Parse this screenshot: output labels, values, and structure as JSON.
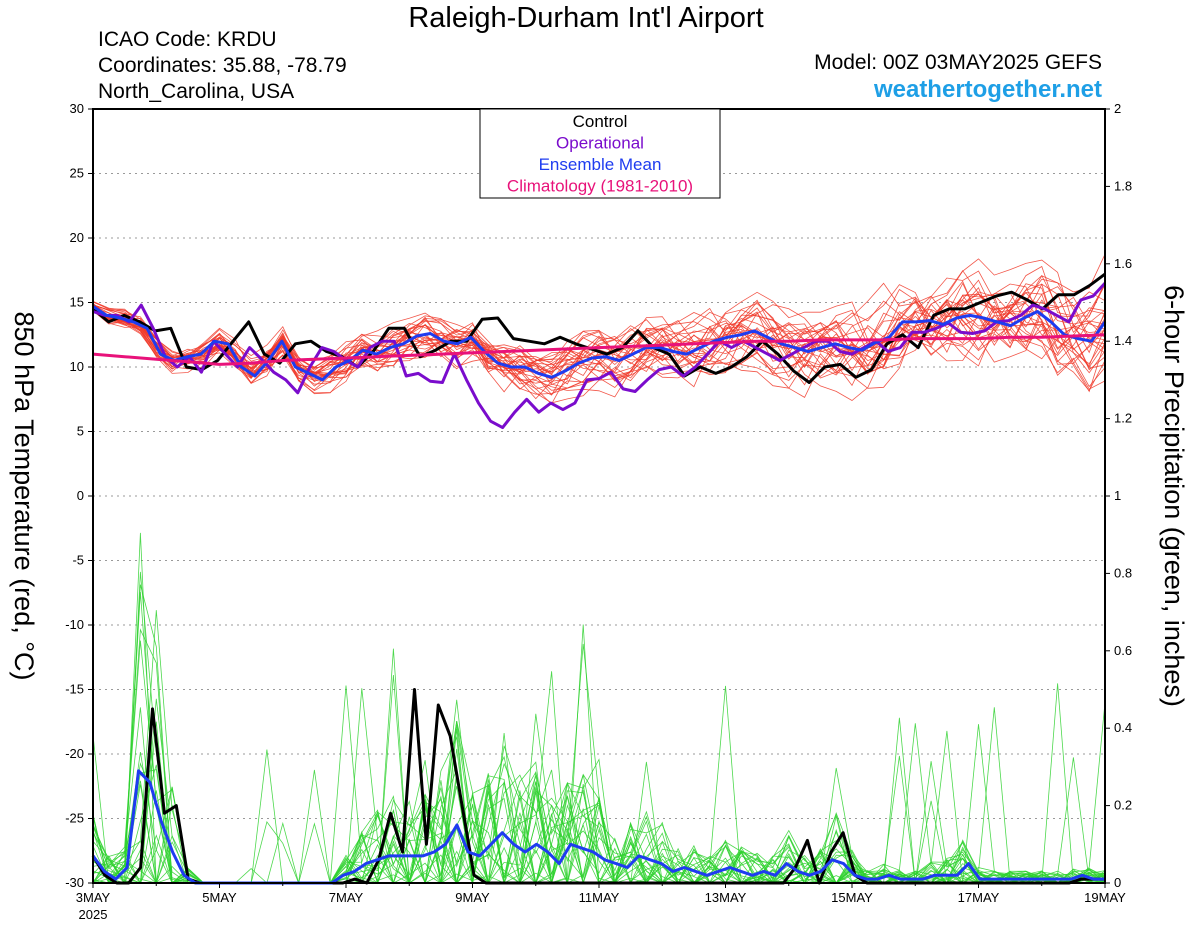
{
  "header": {
    "title": "Raleigh-Durham Int'l Airport",
    "icao": "ICAO Code: KRDU",
    "coordinates": "Coordinates: 35.88, -78.79",
    "region": "North_Carolina, USA",
    "model": "Model: 00Z 03MAY2025 GEFS",
    "site": "weathertogether.net"
  },
  "colors": {
    "control": "#000000",
    "operational": "#7a0ccc",
    "ensemble_mean": "#1e3cf0",
    "climatology": "#e8127a",
    "members_temp": "#f03a2a",
    "members_precip": "#2ed12e",
    "site_link": "#1e9fe6"
  },
  "chart_data": {
    "type": "line",
    "x_labels": [
      "3MAY",
      "5MAY",
      "7MAY",
      "9MAY",
      "11MAY",
      "13MAY",
      "15MAY",
      "17MAY",
      "19MAY"
    ],
    "x_year_label": "2025",
    "x_range_days": [
      0,
      16
    ],
    "step_days": 0.25,
    "left_axis": {
      "label": "850 hPa Temperature (red, °C)",
      "range": [
        -30,
        30
      ],
      "ticks": [
        30,
        25,
        20,
        15,
        10,
        5,
        0,
        -5,
        -10,
        -15,
        -20,
        -25,
        -30
      ]
    },
    "right_axis": {
      "label": "6-hour Precipitation (green, inches)",
      "range": [
        0,
        2
      ],
      "ticks": [
        "2",
        "1.8",
        "1.6",
        "1.4",
        "1.2",
        "1",
        "0.8",
        "0.6",
        "0.4",
        "0.2",
        "0"
      ]
    },
    "grid": true,
    "legend": {
      "position": "top-center",
      "entries": [
        "Control",
        "Operational",
        "Ensemble Mean",
        "Climatology (1981-2010)"
      ]
    },
    "series": [
      {
        "name": "Control",
        "axis": "left",
        "values": [
          14.5,
          13.5,
          14,
          13.5,
          12.8,
          13,
          10,
          9.8,
          10.5,
          12,
          13.5,
          11,
          10.3,
          11.8,
          12,
          11.2,
          10.8,
          10,
          11.2,
          13,
          13,
          10.8,
          11.3,
          12,
          12,
          13.7,
          13.8,
          12.2,
          12,
          11.8,
          12.3,
          11.8,
          11.4,
          11,
          11.5,
          12.8,
          11.5,
          11,
          9.3,
          10,
          9.5,
          10,
          10.8,
          12,
          11,
          9.7,
          8.8,
          10,
          10.2,
          9.2,
          9.8,
          11.8,
          12.5,
          11.5,
          14,
          14.5,
          14.5,
          15,
          15.5,
          15.8,
          15.2,
          14.5,
          15.6,
          15.6,
          16.3,
          17.2
        ]
      },
      {
        "name": "Operational",
        "axis": "left",
        "values": [
          14.3,
          14,
          14,
          13.5,
          14.8,
          13,
          10.8,
          10,
          10.8,
          9.6,
          12,
          11,
          10,
          11.5,
          10.6,
          9.6,
          9,
          8,
          10,
          11.5,
          11.2,
          10.5,
          10,
          11.5,
          12,
          12,
          9.3,
          9.5,
          8.9,
          8.8,
          11,
          9,
          7.2,
          5.8,
          5.3,
          6.5,
          7.5,
          6.5,
          7.2,
          6.7,
          7.2,
          9,
          9.1,
          9.6,
          8.3,
          8.1,
          9,
          9.8,
          10,
          9.3,
          10,
          11,
          12,
          11.5,
          12,
          11.5,
          11,
          10.5,
          11,
          11.5,
          12,
          12,
          11.2,
          11,
          11.5,
          12,
          11.2,
          11.5,
          12.7,
          12.7,
          13,
          13.4,
          12.7,
          12.6,
          12.8,
          13.5,
          13.6,
          14,
          14.8,
          14.5,
          14,
          13.5,
          15.2,
          15.5,
          16.5
        ]
      },
      {
        "name": "Ensemble Mean",
        "axis": "left",
        "values": [
          14.7,
          14,
          13.8,
          13.5,
          13,
          11,
          10.5,
          10.8,
          11,
          12,
          11.8,
          10,
          9.3,
          10.5,
          12,
          10,
          9.5,
          9,
          10,
          10.5,
          11.3,
          11,
          11.5,
          11.8,
          12.4,
          12.6,
          12,
          11.8,
          12.3,
          11.2,
          10.3,
          10,
          10,
          9.5,
          9.2,
          9.7,
          10.3,
          10.7,
          10.8,
          10.5,
          11,
          11.5,
          11.5,
          11.2,
          11,
          11.5,
          12,
          12.3,
          12.5,
          12.8,
          12.3,
          11.8,
          11.5,
          11.2,
          11.5,
          11.8,
          11.5,
          11.3,
          11.9,
          12.3,
          13.5,
          13.5,
          13.6,
          13.3,
          13.8,
          14,
          13.8,
          13.5,
          13.2,
          13.8,
          14.3,
          13.5,
          12.5,
          12.2,
          12,
          13.5
        ]
      },
      {
        "name": "Climatology (1981-2010)",
        "axis": "left",
        "values": [
          11,
          10.8,
          10.6,
          10.4,
          10.2,
          10.3,
          10.5,
          10.6,
          10.7,
          10.8,
          10.9,
          11,
          11.1,
          11.2,
          11.3,
          11.4,
          11.5,
          11.6,
          11.7,
          11.8,
          11.9,
          12,
          12,
          12.1,
          12.1,
          12.1,
          12.2,
          12.2,
          12.2,
          12.3,
          12.3,
          12.4,
          12.5
        ]
      },
      {
        "name": "Control",
        "axis": "right",
        "values": [
          0.07,
          0.02,
          0,
          0,
          0.04,
          0.45,
          0.18,
          0.2,
          0.01,
          0,
          0,
          0,
          0,
          0,
          0,
          0,
          0,
          0,
          0,
          0,
          0,
          0,
          0.01,
          0,
          0.06,
          0.18,
          0.08,
          0.5,
          0.1,
          0.46,
          0.38,
          0.2,
          0.02,
          0,
          0,
          0,
          0,
          0,
          0,
          0,
          0,
          0,
          0,
          0,
          0,
          0,
          0,
          0,
          0,
          0,
          0,
          0,
          0,
          0,
          0,
          0,
          0,
          0,
          0,
          0.04,
          0.11,
          0,
          0.08,
          0.13,
          0.02,
          0,
          0,
          0,
          0,
          0,
          0,
          0,
          0,
          0,
          0,
          0,
          0,
          0,
          0,
          0,
          0,
          0,
          0,
          0.01,
          0.01,
          0.01
        ]
      },
      {
        "name": "Ensemble Mean",
        "axis": "right",
        "values": [
          0.07,
          0.03,
          0.01,
          0.04,
          0.29,
          0.26,
          0.16,
          0.08,
          0.02,
          0,
          0,
          0,
          0,
          0,
          0,
          0,
          0,
          0,
          0,
          0,
          0,
          0,
          0.02,
          0.03,
          0.05,
          0.06,
          0.07,
          0.07,
          0.07,
          0.07,
          0.08,
          0.1,
          0.15,
          0.08,
          0.07,
          0.1,
          0.13,
          0.1,
          0.08,
          0.1,
          0.08,
          0.05,
          0.1,
          0.09,
          0.08,
          0.06,
          0.05,
          0.04,
          0.07,
          0.06,
          0.05,
          0.03,
          0.04,
          0.03,
          0.02,
          0.03,
          0.04,
          0.03,
          0.02,
          0.03,
          0.02,
          0.05,
          0.03,
          0.02,
          0.03,
          0.06,
          0.05,
          0.02,
          0.01,
          0.01,
          0.02,
          0.01,
          0.01,
          0.01,
          0.02,
          0.02,
          0.02,
          0.05,
          0.01,
          0.01,
          0.01,
          0.01,
          0.01,
          0.01,
          0.01,
          0.01,
          0.01,
          0.02,
          0.01,
          0.01
        ]
      }
    ]
  }
}
